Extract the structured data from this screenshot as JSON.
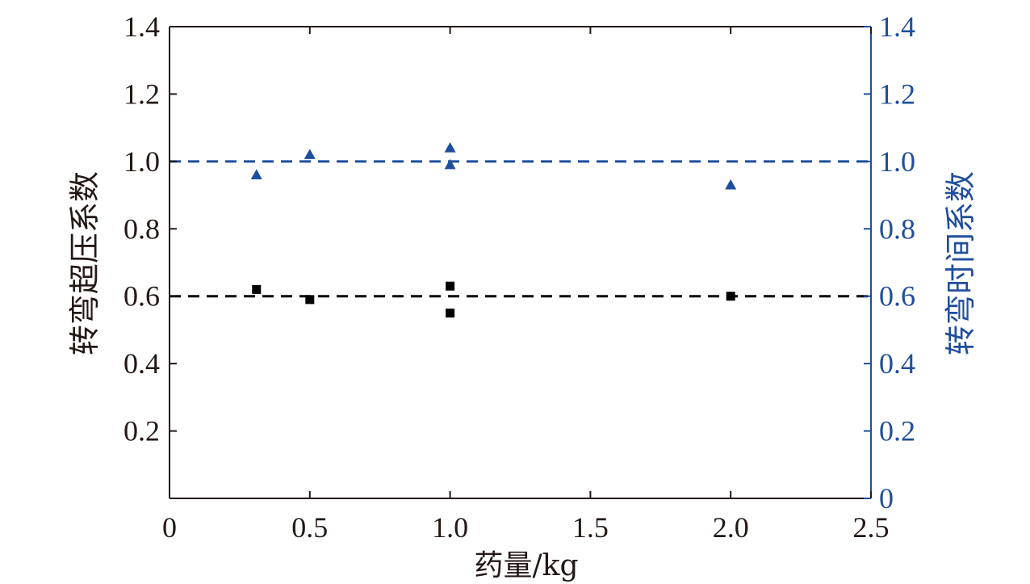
{
  "chart_data": {
    "type": "scatter",
    "xlabel": "药量/kg",
    "ylabel_left": "转弯超压系数",
    "ylabel_right": "转弯时间系数",
    "xlim": [
      0,
      2.5
    ],
    "ylim_left": [
      0,
      1.4
    ],
    "ylim_right": [
      0,
      1.4
    ],
    "x_ticks": [
      "0",
      "0.5",
      "1.0",
      "1.5",
      "2.0",
      "2.5"
    ],
    "x_tick_values": [
      0,
      0.5,
      1.0,
      1.5,
      2.0,
      2.5
    ],
    "y_left_ticks": [
      "0.2",
      "0.4",
      "0.6",
      "0.8",
      "1.0",
      "1.2",
      "1.4"
    ],
    "y_left_tick_values": [
      0.2,
      0.4,
      0.6,
      0.8,
      1.0,
      1.2,
      1.4
    ],
    "y_right_ticks": [
      "0",
      "0.2",
      "0.4",
      "0.6",
      "0.8",
      "1.0",
      "1.2",
      "1.4"
    ],
    "y_right_tick_values": [
      0,
      0.2,
      0.4,
      0.6,
      0.8,
      1.0,
      1.2,
      1.4
    ],
    "grid": false,
    "colors": {
      "axis": "#231815",
      "left_series": "#000000",
      "right_series": "#1f4e9c"
    },
    "series": [
      {
        "axis": "left",
        "marker": "square",
        "color": "#000000",
        "points": [
          [
            0.31,
            0.62
          ],
          [
            0.5,
            0.59
          ],
          [
            1.0,
            0.63
          ],
          [
            1.0,
            0.55
          ],
          [
            2.0,
            0.6
          ]
        ]
      },
      {
        "axis": "right",
        "marker": "triangle",
        "color": "#1f4e9c",
        "points": [
          [
            0.31,
            0.96
          ],
          [
            0.5,
            1.02
          ],
          [
            1.0,
            1.04
          ],
          [
            1.0,
            0.99
          ],
          [
            2.0,
            0.93
          ]
        ]
      }
    ],
    "reference_lines": [
      {
        "axis": "left",
        "y": 0.6,
        "style": "dashed",
        "color": "#000000"
      },
      {
        "axis": "right",
        "y": 1.0,
        "style": "dashed",
        "color": "#1f4e9c"
      }
    ]
  }
}
